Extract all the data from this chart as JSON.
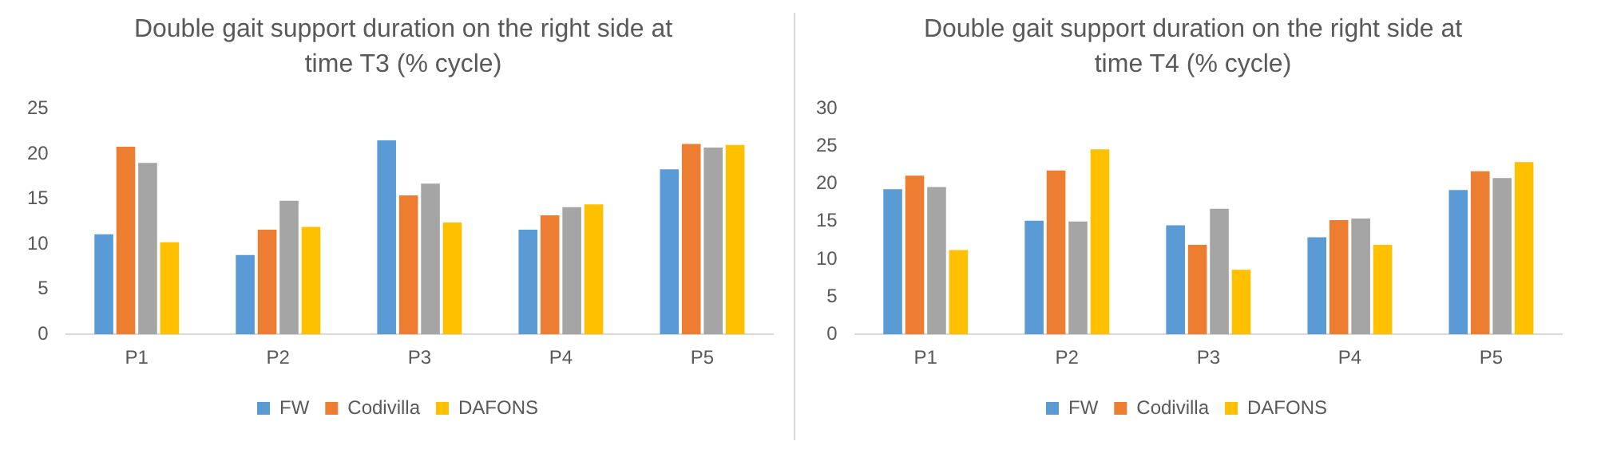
{
  "chart_data": [
    {
      "type": "bar",
      "title": "Double gait support duration on the right side at time T3 (% cycle)",
      "categories": [
        "P1",
        "P2",
        "P3",
        "P4",
        "P5"
      ],
      "series": [
        {
          "name": "FW",
          "color": "#5b9bd5",
          "values": [
            11.1,
            8.8,
            21.5,
            11.6,
            18.3
          ]
        },
        {
          "name": "Codivilla",
          "color": "#ed7d31",
          "values": [
            20.8,
            11.6,
            15.4,
            13.2,
            21.1
          ]
        },
        {
          "color": "#a5a5a5",
          "values": [
            19.0,
            14.8,
            16.7,
            14.1,
            20.7
          ]
        },
        {
          "name": "DAFONS",
          "color": "#ffc000",
          "values": [
            10.2,
            11.9,
            12.4,
            14.4,
            21.0
          ]
        }
      ],
      "ylim": [
        0,
        25
      ],
      "yticks": [
        0,
        5,
        10,
        15,
        20,
        25
      ],
      "grid": false,
      "legend": "bottom"
    },
    {
      "type": "bar",
      "title": "Double gait support duration on the right side at time T4 (% cycle)",
      "categories": [
        "P1",
        "P2",
        "P3",
        "P4",
        "P5"
      ],
      "series": [
        {
          "name": "FW",
          "color": "#5b9bd5",
          "values": [
            19.3,
            15.1,
            14.5,
            12.9,
            19.2
          ]
        },
        {
          "name": "Codivilla",
          "color": "#ed7d31",
          "values": [
            21.1,
            21.8,
            11.9,
            15.2,
            21.7
          ]
        },
        {
          "color": "#a5a5a5",
          "values": [
            19.6,
            15.0,
            16.7,
            15.4,
            20.8
          ]
        },
        {
          "name": "DAFONS",
          "color": "#ffc000",
          "values": [
            11.2,
            24.6,
            8.6,
            11.9,
            22.9
          ]
        }
      ],
      "ylim": [
        0,
        30
      ],
      "yticks": [
        0,
        5,
        10,
        15,
        20,
        25,
        30
      ],
      "grid": false,
      "legend": "bottom"
    }
  ]
}
